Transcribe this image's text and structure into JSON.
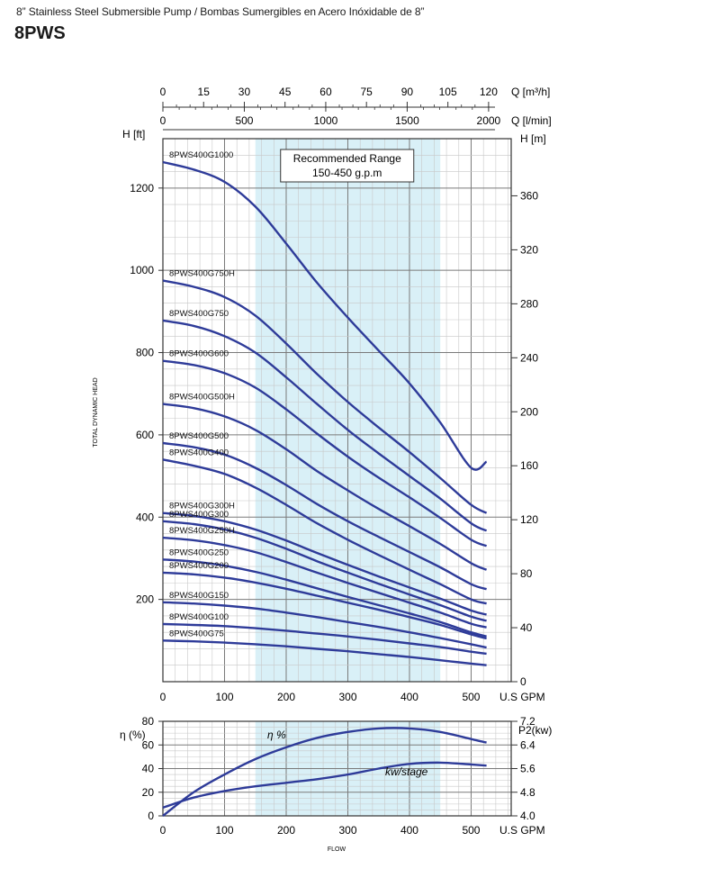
{
  "header": {
    "subtitle": "8” Stainless Steel Submersible Pump / Bombas Sumergibles en Acero Inóxidable de 8”",
    "model": "8PWS"
  },
  "colors": {
    "curve": "#2e3b99",
    "recommended_band": "#d9f0f7",
    "grid_major": "#7a7a7a",
    "grid_minor": "#c8c8c8"
  },
  "chart_data": [
    {
      "type": "line",
      "name": "head-curves",
      "xlabel": "U.S GPM",
      "ylabel": "H [ft]",
      "ylabel_right": "H [m]",
      "ylabel_side": "TOTAL DYNAMIC HEAD",
      "xlim": [
        0,
        565
      ],
      "ylim": [
        0,
        1320
      ],
      "x_ticks": [
        0,
        100,
        200,
        300,
        400,
        500
      ],
      "y_ticks": [
        200,
        400,
        600,
        800,
        1000,
        1200
      ],
      "y_right_ticks": [
        0,
        40,
        80,
        120,
        160,
        200,
        240,
        280,
        320,
        360
      ],
      "top_axis_m3h": {
        "label": "Q [m³/h]",
        "ticks": [
          0,
          15,
          30,
          45,
          60,
          75,
          90,
          105,
          120
        ]
      },
      "top_axis_lmin": {
        "label": "Q [l/min]",
        "ticks": [
          0,
          500,
          1000,
          1500,
          2000
        ]
      },
      "recommended_range": {
        "x": [
          150,
          450
        ],
        "label_line1": "Recommended Range",
        "label_line2": "150-450 g.p.m"
      },
      "grid": true,
      "series": [
        {
          "name": "8PWS400G1000",
          "x": [
            0,
            50,
            100,
            150,
            200,
            250,
            300,
            350,
            400,
            450,
            500,
            525
          ],
          "y": [
            1263,
            1245,
            1215,
            1155,
            1065,
            970,
            885,
            805,
            725,
            630,
            520,
            535
          ]
        },
        {
          "name": "8PWS400G750H",
          "x": [
            0,
            50,
            100,
            150,
            200,
            250,
            300,
            350,
            400,
            450,
            500,
            525
          ],
          "y": [
            975,
            960,
            935,
            890,
            822,
            748,
            680,
            618,
            558,
            495,
            430,
            410
          ]
        },
        {
          "name": "8PWS400G750",
          "x": [
            0,
            50,
            100,
            150,
            200,
            250,
            300,
            350,
            400,
            450,
            500,
            525
          ],
          "y": [
            878,
            865,
            840,
            800,
            740,
            675,
            612,
            555,
            500,
            445,
            385,
            367
          ]
        },
        {
          "name": "8PWS400G600",
          "x": [
            0,
            50,
            100,
            150,
            200,
            250,
            300,
            350,
            400,
            450,
            500,
            525
          ],
          "y": [
            780,
            770,
            750,
            715,
            662,
            603,
            547,
            496,
            448,
            398,
            345,
            330
          ]
        },
        {
          "name": "8PWS400G500H",
          "x": [
            0,
            50,
            100,
            150,
            200,
            250,
            300,
            350,
            400,
            450,
            500,
            525
          ],
          "y": [
            675,
            665,
            645,
            612,
            565,
            512,
            465,
            420,
            378,
            335,
            288,
            272
          ]
        },
        {
          "name": "8PWS400G500",
          "x": [
            0,
            50,
            100,
            150,
            200,
            250,
            300,
            350,
            400,
            450,
            500,
            525
          ],
          "y": [
            580,
            570,
            552,
            520,
            478,
            432,
            390,
            352,
            315,
            278,
            237,
            225
          ]
        },
        {
          "name": "8PWS400G400",
          "x": [
            0,
            50,
            100,
            150,
            200,
            250,
            300,
            350,
            400,
            450,
            500,
            525
          ],
          "y": [
            540,
            525,
            505,
            472,
            430,
            385,
            345,
            308,
            272,
            237,
            200,
            190
          ]
        },
        {
          "name": "8PWS400G300H",
          "x": [
            0,
            50,
            100,
            150,
            200,
            250,
            300,
            350,
            400,
            450,
            500,
            525
          ],
          "y": [
            410,
            403,
            390,
            370,
            343,
            313,
            284,
            256,
            229,
            202,
            173,
            163
          ]
        },
        {
          "name": "8PWS400G300",
          "x": [
            0,
            50,
            100,
            150,
            200,
            250,
            300,
            350,
            400,
            450,
            500,
            525
          ],
          "y": [
            390,
            383,
            370,
            350,
            323,
            293,
            265,
            238,
            212,
            186,
            158,
            148
          ]
        },
        {
          "name": "8PWS400G250H",
          "x": [
            0,
            50,
            100,
            150,
            200,
            250,
            300,
            350,
            400,
            450,
            500,
            525
          ],
          "y": [
            350,
            344,
            332,
            315,
            291,
            265,
            240,
            216,
            192,
            168,
            141,
            132
          ]
        },
        {
          "name": "8PWS400G250",
          "x": [
            0,
            50,
            100,
            150,
            200,
            250,
            300,
            350,
            400,
            450,
            500,
            525
          ],
          "y": [
            297,
            292,
            282,
            267,
            248,
            227,
            206,
            186,
            166,
            145,
            120,
            110
          ]
        },
        {
          "name": "8PWS400G200",
          "x": [
            0,
            50,
            100,
            150,
            200,
            250,
            300,
            350,
            400,
            450,
            500,
            525
          ],
          "y": [
            265,
            261,
            253,
            241,
            226,
            209,
            192,
            175,
            157,
            138,
            115,
            105
          ]
        },
        {
          "name": "8PWS400G150",
          "x": [
            0,
            50,
            100,
            150,
            200,
            250,
            300,
            350,
            400,
            450,
            500,
            525
          ],
          "y": [
            193,
            190,
            185,
            178,
            168,
            157,
            145,
            133,
            120,
            106,
            91,
            83
          ]
        },
        {
          "name": "8PWS400G100",
          "x": [
            0,
            50,
            100,
            150,
            200,
            250,
            300,
            350,
            400,
            450,
            500,
            525
          ],
          "y": [
            140,
            138,
            135,
            130,
            124,
            117,
            110,
            102,
            93,
            84,
            73,
            68
          ]
        },
        {
          "name": "8PWS400G75",
          "x": [
            0,
            50,
            100,
            150,
            200,
            250,
            300,
            350,
            400,
            450,
            500,
            525
          ],
          "y": [
            100,
            98,
            95,
            91,
            86,
            80,
            74,
            67,
            60,
            52,
            44,
            40
          ]
        }
      ]
    },
    {
      "type": "line",
      "name": "efficiency-power",
      "xlabel": "FLOW",
      "x_unit": "U.S GPM",
      "ylabel": "η (%)",
      "ylabel_right": "P2(kw)",
      "xlim": [
        0,
        565
      ],
      "ylim": [
        0,
        80
      ],
      "y_right_lim": [
        4.0,
        7.2
      ],
      "x_ticks": [
        0,
        100,
        200,
        300,
        400,
        500
      ],
      "y_ticks": [
        0,
        20,
        40,
        60,
        80
      ],
      "y_right_ticks": [
        "4.0",
        "4.8",
        "5.6",
        "6.4",
        "7.2"
      ],
      "series": [
        {
          "name": "η %",
          "x": [
            0,
            50,
            100,
            150,
            200,
            250,
            300,
            350,
            400,
            450,
            500,
            525
          ],
          "y": [
            0,
            20,
            35,
            48,
            58,
            66,
            71,
            74,
            74,
            71,
            65,
            62
          ]
        },
        {
          "name": "kw/stage",
          "x": [
            0,
            50,
            100,
            150,
            200,
            250,
            300,
            350,
            400,
            450,
            500,
            525
          ],
          "y_right": [
            4.28,
            4.62,
            4.84,
            5.0,
            5.12,
            5.24,
            5.4,
            5.6,
            5.76,
            5.8,
            5.74,
            5.7
          ]
        }
      ]
    }
  ]
}
